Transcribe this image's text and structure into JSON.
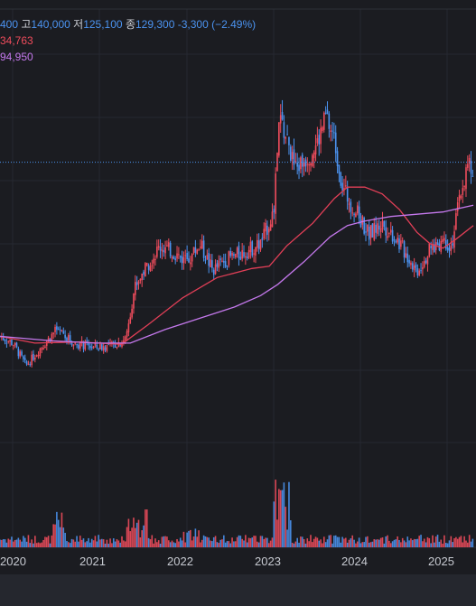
{
  "legend": {
    "open_value": "400",
    "high_label": "고",
    "high_value": "140,000",
    "low_label": "저",
    "low_value": "125,100",
    "close_label": "종",
    "close_value": "129,300",
    "change": "-3,300 (−2.49%)",
    "ma_short_value": "34,763",
    "ma_long_value": "94,950"
  },
  "colors": {
    "background": "#1b1c21",
    "up": "#ef4c5c",
    "down": "#4b93f0",
    "ma_short": "#e23f57",
    "ma_long": "#c478ec",
    "grid": "#262831",
    "price_line": "#4b93f0"
  },
  "chart_data": {
    "type": "candlestick",
    "x_tick_labels": [
      "2020",
      "2021",
      "2022",
      "2023",
      "2024",
      "2025"
    ],
    "series": [
      {
        "name": "price",
        "points": [
          [
            2019.9,
            63000
          ],
          [
            2020.05,
            60000
          ],
          [
            2020.2,
            50000
          ],
          [
            2020.35,
            57000
          ],
          [
            2020.55,
            66000
          ],
          [
            2020.75,
            60000
          ],
          [
            2021.0,
            58000
          ],
          [
            2021.2,
            59000
          ],
          [
            2021.35,
            62000
          ],
          [
            2021.45,
            85000
          ],
          [
            2021.6,
            95000
          ],
          [
            2021.75,
            103000
          ],
          [
            2021.9,
            100000
          ],
          [
            2022.05,
            96000
          ],
          [
            2022.2,
            104000
          ],
          [
            2022.35,
            92000
          ],
          [
            2022.5,
            97000
          ],
          [
            2022.7,
            100000
          ],
          [
            2022.9,
            104000
          ],
          [
            2023.05,
            118000
          ],
          [
            2023.12,
            160000
          ],
          [
            2023.2,
            150000
          ],
          [
            2023.3,
            137000
          ],
          [
            2023.45,
            143000
          ],
          [
            2023.55,
            148000
          ],
          [
            2023.65,
            160000
          ],
          [
            2023.75,
            150000
          ],
          [
            2023.85,
            128000
          ],
          [
            2024.0,
            118000
          ],
          [
            2024.15,
            108000
          ],
          [
            2024.3,
            113000
          ],
          [
            2024.45,
            107000
          ],
          [
            2024.6,
            98000
          ],
          [
            2024.7,
            92000
          ],
          [
            2024.85,
            101000
          ],
          [
            2025.0,
            106000
          ],
          [
            2025.1,
            103000
          ],
          [
            2025.2,
            126000
          ],
          [
            2025.3,
            140000
          ],
          [
            2025.35,
            129300
          ]
        ]
      },
      {
        "name": "ma_short",
        "points": [
          [
            2019.9,
            63000
          ],
          [
            2020.3,
            60000
          ],
          [
            2020.8,
            60500
          ],
          [
            2021.3,
            59500
          ],
          [
            2021.6,
            68000
          ],
          [
            2022.0,
            80000
          ],
          [
            2022.4,
            89000
          ],
          [
            2022.8,
            93000
          ],
          [
            2023.0,
            94000
          ],
          [
            2023.2,
            103000
          ],
          [
            2023.5,
            113000
          ],
          [
            2023.75,
            124000
          ],
          [
            2023.9,
            129000
          ],
          [
            2024.1,
            129000
          ],
          [
            2024.3,
            126000
          ],
          [
            2024.5,
            119000
          ],
          [
            2024.7,
            109000
          ],
          [
            2024.85,
            104000
          ],
          [
            2025.0,
            102000
          ],
          [
            2025.15,
            106000
          ],
          [
            2025.35,
            112000
          ]
        ]
      },
      {
        "name": "ma_long",
        "points": [
          [
            2019.9,
            63000
          ],
          [
            2020.5,
            61000
          ],
          [
            2021.0,
            60000
          ],
          [
            2021.4,
            60000
          ],
          [
            2021.8,
            66000
          ],
          [
            2022.2,
            71000
          ],
          [
            2022.6,
            76000
          ],
          [
            2022.9,
            81000
          ],
          [
            2023.1,
            86000
          ],
          [
            2023.4,
            96000
          ],
          [
            2023.7,
            107000
          ],
          [
            2023.9,
            112000
          ],
          [
            2024.1,
            114000
          ],
          [
            2024.4,
            116000
          ],
          [
            2024.7,
            117000
          ],
          [
            2025.0,
            118000
          ],
          [
            2025.35,
            121000
          ]
        ]
      }
    ],
    "reference_price": 140000
  }
}
